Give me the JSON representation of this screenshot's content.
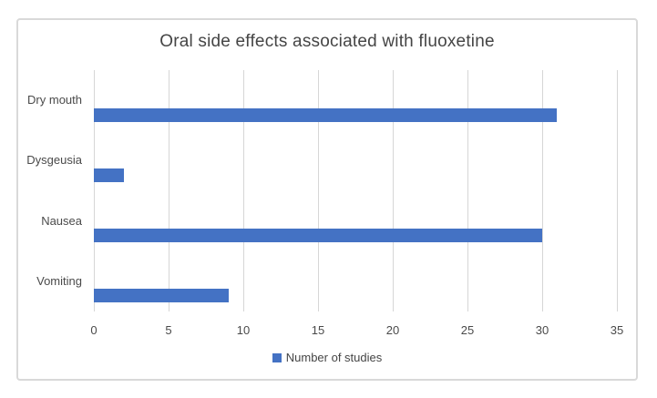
{
  "chart": {
    "legend_label": "Number of studies",
    "colors": {
      "bar": "#4472C4",
      "gridline": "#D6D6D6",
      "frame_border": "#D9D9D9",
      "title_text": "#454545",
      "axis_text": "#4A4A4A"
    }
  },
  "chart_data": {
    "type": "bar",
    "orientation": "horizontal",
    "title": "Oral side effects associated with fluoxetine",
    "categories": [
      "Dry mouth",
      "Dysgeusia",
      "Nausea",
      "Vomiting"
    ],
    "values": [
      31,
      2,
      30,
      9
    ],
    "series_name": "Number of studies",
    "xlabel": "",
    "ylabel": "",
    "xlim": [
      0,
      35
    ],
    "xticks": [
      0,
      5,
      10,
      15,
      20,
      25,
      30,
      35
    ],
    "grid": true,
    "legend_position": "bottom",
    "legend_entries": [
      "Number of studies"
    ]
  }
}
